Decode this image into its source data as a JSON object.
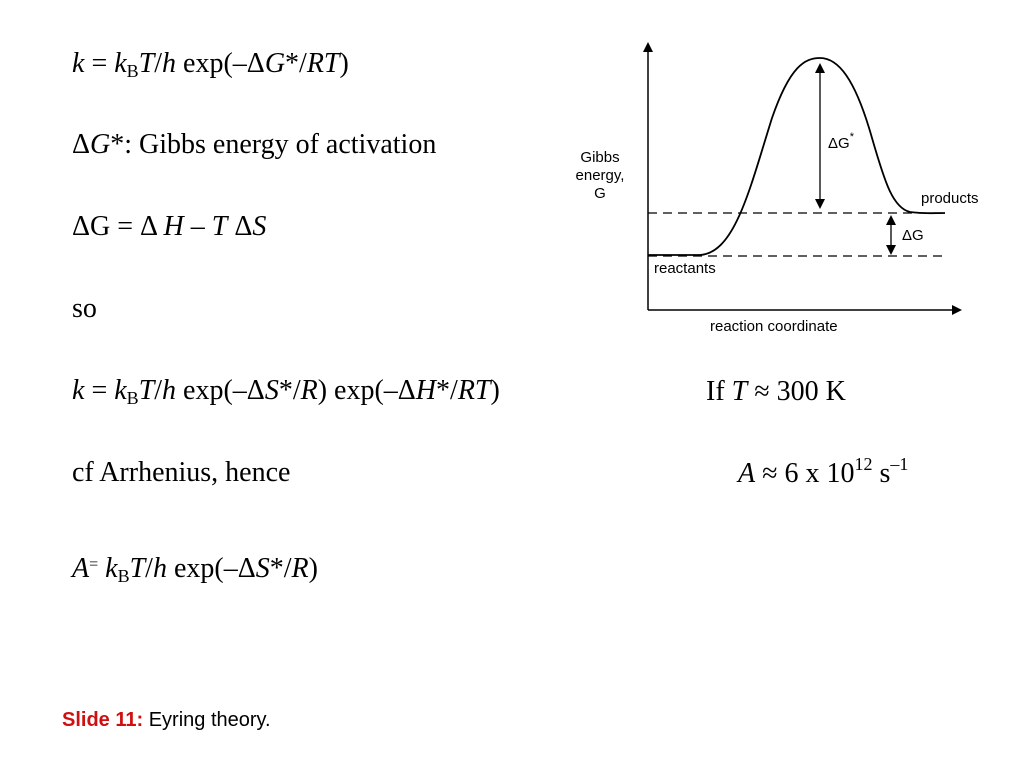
{
  "equations": {
    "eq1": {
      "k": "k",
      "eq": " = ",
      "kB_k": "k",
      "kB_sub": "B",
      "T": "T",
      "slash": "/",
      "h": "h",
      "exp": " exp(–Δ",
      "G": "G",
      "star": "*/",
      "RT": "RT",
      "close": ")"
    },
    "eq2": {
      "delta": "Δ",
      "G": "G",
      "rest": "*: Gibbs energy of activation"
    },
    "eq3": {
      "delta1": "Δ",
      "G": "G = Δ ",
      "H": "H",
      "minus": " – ",
      "T": "T",
      "delta2": " Δ",
      "S": "S"
    },
    "eq4": {
      "text": "so"
    },
    "eq5": {
      "k": "k",
      "eq": " = ",
      "kB_k": "k",
      "kB_sub": "B",
      "T": "T",
      "slash": "/",
      "h": "h",
      "exp1": " exp(–Δ",
      "S": "S",
      "star1": "*/",
      "R": "R",
      "mid": ") exp(–Δ",
      "H": "H",
      "star2": "*/",
      "RT": "RT",
      "close": ")"
    },
    "eq6": {
      "text": "cf Arrhenius, hence"
    },
    "eq7": {
      "A": "A",
      "eq": "=",
      "kB_k": "k",
      "kB_sub": "B",
      "T": "T",
      "slash": "/",
      "h": "h",
      "exp": " exp(–Δ",
      "S": "S",
      "star": "*/",
      "R": "R",
      "close": ")"
    }
  },
  "condition": {
    "if": "If ",
    "T": "T",
    "rest": " ≈ 300 K"
  },
  "result": {
    "A": "A",
    "approx": " ≈ 6 x 10",
    "exp": "12",
    "unit": " s",
    "unit_exp": "–1"
  },
  "diagram": {
    "y_label_1": "Gibbs",
    "y_label_2": "energy,",
    "y_label_3": "G",
    "x_label": "reaction coordinate",
    "reactants": "reactants",
    "products": "products",
    "dG_star": "ΔG",
    "dG_star_sup": "*",
    "dG": "ΔG"
  },
  "caption": {
    "label": "Slide 11:",
    "text": " Eyring theory."
  },
  "colors": {
    "caption_label": "#d01010",
    "text": "#000000"
  }
}
